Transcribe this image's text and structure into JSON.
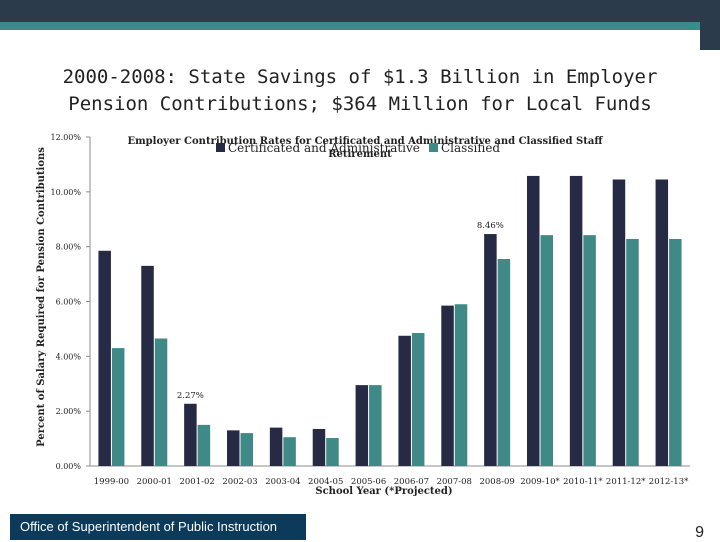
{
  "slide": {
    "title_line1": "2000-2008: State Savings of $1.3 Billion in Employer",
    "title_line2": "Pension Contributions; $364 Million for Local Funds",
    "footer": "Office of Superintendent of Public Instruction",
    "page_number": "9"
  },
  "colors": {
    "series1": "#262a44",
    "series2": "#3f8a86",
    "header": "#2b3b4b",
    "accent": "#3d8a8a",
    "footer": "#0b3a5a"
  },
  "chart_data": {
    "type": "bar",
    "title": "Employer Contribution Rates for Certificated and Administrative and Classified Staff Retirement",
    "title_line1": "Employer Contribution Rates for Certificated and Administrative and Classified Staff",
    "title_line2": "Retirement",
    "xlabel": "School Year (*Projected)",
    "ylabel": "Percent of Salary Required for Pension Contributions",
    "ylim": [
      0,
      12
    ],
    "yticks": [
      "0.00%",
      "2.00%",
      "4.00%",
      "6.00%",
      "8.00%",
      "10.00%",
      "12.00%"
    ],
    "grid": false,
    "legend_position": "top",
    "categories": [
      "1999-00",
      "2000-01",
      "2001-02",
      "2002-03",
      "2003-04",
      "2004-05",
      "2005-06",
      "2006-07",
      "2007-08",
      "2008-09",
      "2009-10*",
      "2010-11*",
      "2011-12*",
      "2012-13*"
    ],
    "series": [
      {
        "name": "Certificated and Administrative",
        "values": [
          7.85,
          7.3,
          2.27,
          1.3,
          1.4,
          1.35,
          2.95,
          4.75,
          5.85,
          8.46,
          10.58,
          10.58,
          10.45,
          10.45
        ]
      },
      {
        "name": "Classified",
        "values": [
          4.3,
          4.65,
          1.5,
          1.2,
          1.05,
          1.02,
          2.95,
          4.85,
          5.9,
          7.55,
          8.42,
          8.42,
          8.28,
          8.28
        ]
      }
    ],
    "data_labels": [
      {
        "series": 0,
        "index": 2,
        "text": "2.27%"
      },
      {
        "series": 0,
        "index": 9,
        "text": "8.46%"
      }
    ]
  }
}
